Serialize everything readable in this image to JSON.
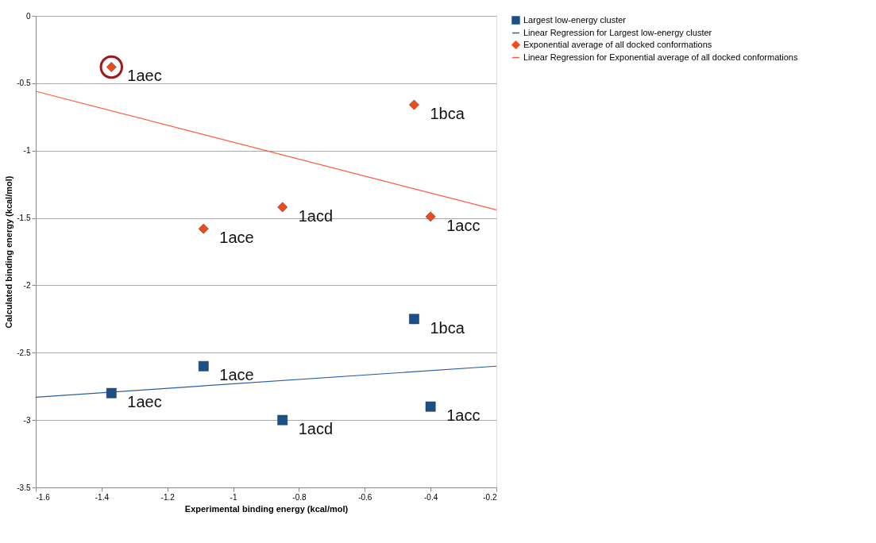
{
  "chart_data": {
    "type": "scatter",
    "xlabel": "Experimental binding energy (kcal/mol)",
    "ylabel": "Calculated binding energy (kcal/mol)",
    "xlim": [
      -1.6,
      -0.2
    ],
    "xticks": [
      -1.6,
      -1.4,
      -1.2,
      -1,
      -0.8,
      -0.6,
      -0.4,
      -0.2
    ],
    "ylim": [
      -3.5,
      0
    ],
    "yticks": [
      -3.5,
      -3,
      -2.5,
      -2,
      -1.5,
      -1,
      -0.5,
      0
    ],
    "grid": "y",
    "legend": "right",
    "series": [
      {
        "name": "Largest low-energy cluster",
        "marker": "square",
        "color": "#1b4f8a",
        "x": [
          -1.37,
          -1.09,
          -0.85,
          -0.45,
          -0.4
        ],
        "values": [
          -2.8,
          -2.6,
          -3.0,
          -2.25,
          -2.9
        ]
      },
      {
        "name": "Linear Regression for Largest low-energy cluster",
        "type": "line",
        "color": "#2a5fa0",
        "x": [
          -1.6,
          -0.2
        ],
        "values": [
          -2.83,
          -2.6
        ]
      },
      {
        "name": "Exponential average of all docked conformations",
        "marker": "diamond",
        "color": "#f04a1a",
        "x": [
          -1.37,
          -1.09,
          -0.85,
          -0.45,
          -0.4
        ],
        "values": [
          -0.38,
          -1.58,
          -1.42,
          -0.66,
          -1.49
        ]
      },
      {
        "name": "Linear Regression for Exponential average of all docked conformations",
        "type": "line",
        "color": "#ff5a3a",
        "x": [
          -1.6,
          -0.2
        ],
        "values": [
          -0.56,
          -1.44
        ]
      },
      {
        "marker": "circle",
        "color": "#9c1a1a",
        "x": [
          -1.37
        ],
        "values": [
          -0.38
        ]
      }
    ],
    "annotations": [
      {
        "text": "1aec",
        "x": -1.37,
        "y": -2.8
      },
      {
        "text": "1ace",
        "x": -1.09,
        "y": -2.6
      },
      {
        "text": "1acd",
        "x": -0.85,
        "y": -3.0
      },
      {
        "text": "1bca",
        "x": -0.45,
        "y": -2.25
      },
      {
        "text": "1acc",
        "x": -0.4,
        "y": -2.9
      },
      {
        "text": "1aec",
        "x": -1.37,
        "y": -0.38
      },
      {
        "text": "1ace",
        "x": -1.09,
        "y": -1.58
      },
      {
        "text": "1acd",
        "x": -0.85,
        "y": -1.42
      },
      {
        "text": "1bca",
        "x": -0.45,
        "y": -0.66
      },
      {
        "text": "1acc",
        "x": -0.4,
        "y": -1.49
      }
    ]
  }
}
